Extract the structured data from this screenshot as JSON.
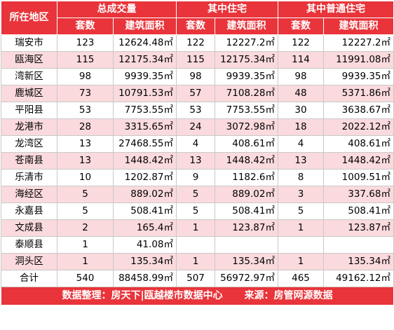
{
  "header": {
    "district": "所在地区",
    "groups": [
      "总成交量",
      "其中住宅",
      "其中普通住宅"
    ],
    "sub": [
      "套数",
      "建筑面积"
    ]
  },
  "rows": [
    {
      "name": "瑞安市",
      "c1": "123",
      "a1": "12624.48㎡",
      "c2": "122",
      "a2": "12227.2㎡",
      "c3": "122",
      "a3": "12227.2㎡"
    },
    {
      "name": "瓯海区",
      "c1": "115",
      "a1": "12175.34㎡",
      "c2": "115",
      "a2": "12175.34㎡",
      "c3": "114",
      "a3": "11991.08㎡"
    },
    {
      "name": "湾新区",
      "c1": "98",
      "a1": "9939.35㎡",
      "c2": "98",
      "a2": "9939.35㎡",
      "c3": "98",
      "a3": "9939.35㎡"
    },
    {
      "name": "鹿城区",
      "c1": "73",
      "a1": "10791.53㎡",
      "c2": "57",
      "a2": "7108.28㎡",
      "c3": "48",
      "a3": "5371.86㎡"
    },
    {
      "name": "平阳县",
      "c1": "53",
      "a1": "7753.55㎡",
      "c2": "53",
      "a2": "7753.55㎡",
      "c3": "30",
      "a3": "3638.67㎡"
    },
    {
      "name": "龙港市",
      "c1": "28",
      "a1": "3315.65㎡",
      "c2": "24",
      "a2": "3072.98㎡",
      "c3": "18",
      "a3": "2022.12㎡"
    },
    {
      "name": "龙湾区",
      "c1": "13",
      "a1": "27468.55㎡",
      "c2": "4",
      "a2": "408.61㎡",
      "c3": "4",
      "a3": "408.61㎡"
    },
    {
      "name": "苍南县",
      "c1": "13",
      "a1": "1448.42㎡",
      "c2": "13",
      "a2": "1448.42㎡",
      "c3": "13",
      "a3": "1448.42㎡"
    },
    {
      "name": "乐清市",
      "c1": "10",
      "a1": "1202.87㎡",
      "c2": "9",
      "a2": "1182.6㎡",
      "c3": "8",
      "a3": "1009.51㎡"
    },
    {
      "name": "海经区",
      "c1": "5",
      "a1": "889.02㎡",
      "c2": "5",
      "a2": "889.02㎡",
      "c3": "3",
      "a3": "337.68㎡"
    },
    {
      "name": "永嘉县",
      "c1": "5",
      "a1": "508.41㎡",
      "c2": "5",
      "a2": "508.41㎡",
      "c3": "5",
      "a3": "508.41㎡"
    },
    {
      "name": "文成县",
      "c1": "2",
      "a1": "165.4㎡",
      "c2": "1",
      "a2": "123.87㎡",
      "c3": "1",
      "a3": "123.87㎡"
    },
    {
      "name": "泰顺县",
      "c1": "1",
      "a1": "41.08㎡",
      "c2": "",
      "a2": "",
      "c3": "",
      "a3": ""
    },
    {
      "name": "洞头区",
      "c1": "1",
      "a1": "135.34㎡",
      "c2": "1",
      "a2": "135.34㎡",
      "c3": "1",
      "a3": "135.34㎡"
    }
  ],
  "total": {
    "name": "合计",
    "c1": "540",
    "a1": "88458.99㎡",
    "c2": "507",
    "a2": "56972.97㎡",
    "c3": "465",
    "a3": "49162.12㎡"
  },
  "footer": {
    "left": "数据整理：房天下|瓯越楼市数据中心",
    "right": "来源：房管网源数据"
  }
}
